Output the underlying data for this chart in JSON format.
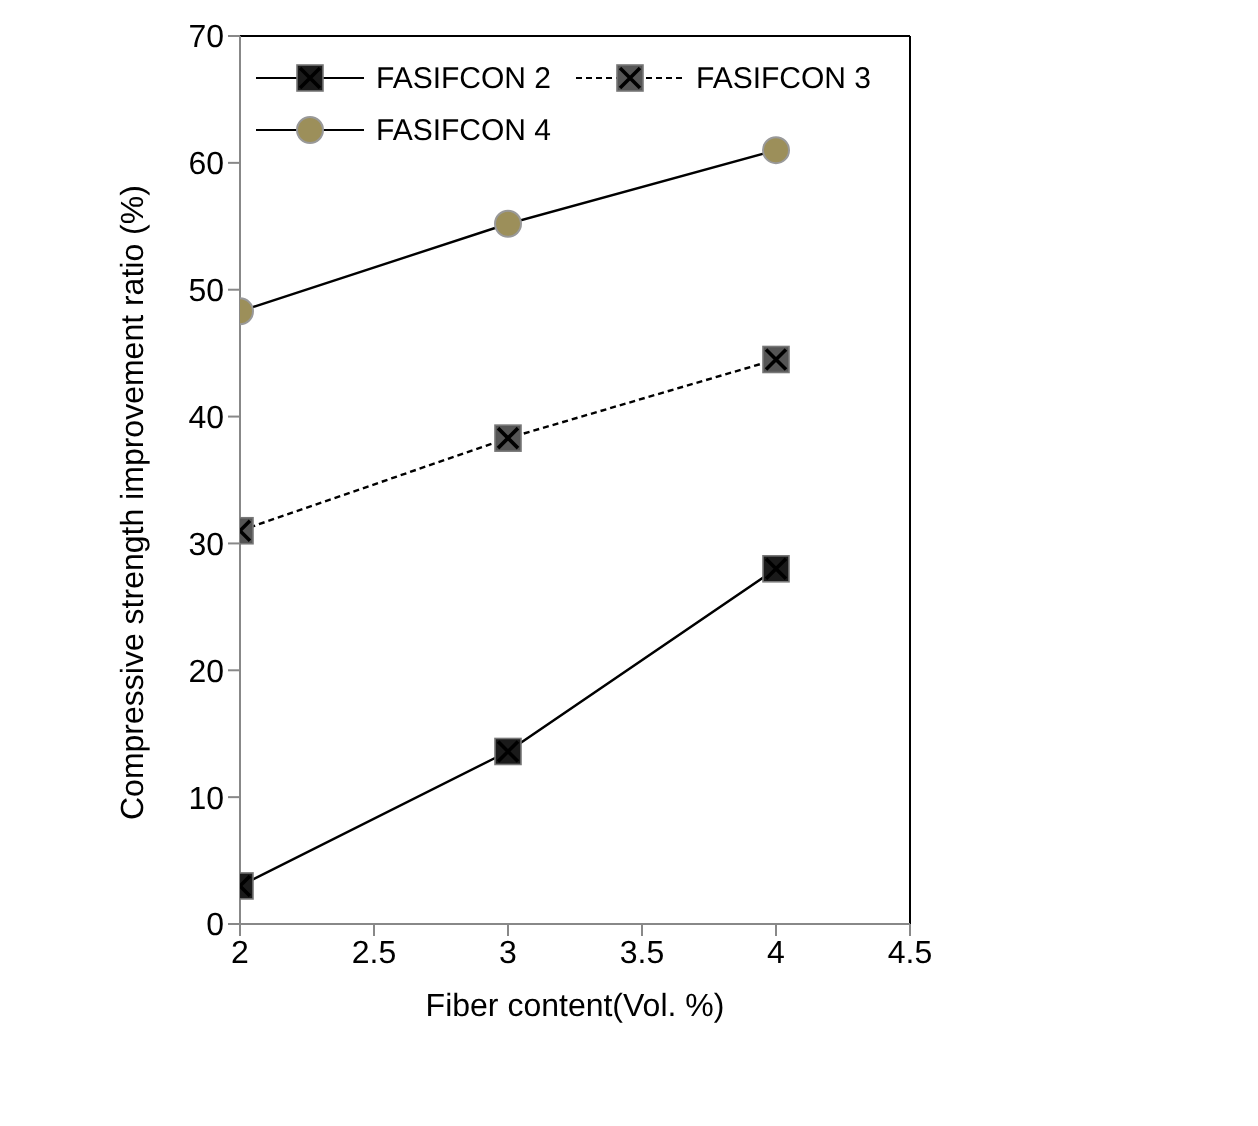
{
  "chart_data": {
    "type": "line",
    "xlabel": "Fiber content(Vol. %)",
    "ylabel": "Compressive strength improvement ratio (%)",
    "x": [
      2,
      3,
      4
    ],
    "series": [
      {
        "name": "FASIFCON 2",
        "color": "#1a1a1a",
        "values": [
          3,
          13.6,
          28
        ],
        "marker": "square",
        "line_style": "solid"
      },
      {
        "name": "FASIFCON 3",
        "color": "#555555",
        "values": [
          31,
          38.3,
          44.5
        ],
        "marker": "square",
        "line_style": "dashed"
      },
      {
        "name": "FASIFCON 4",
        "color": "#9c8f5a",
        "values": [
          48.3,
          55.2,
          61
        ],
        "marker": "circle",
        "line_style": "solid"
      }
    ],
    "xlim": [
      2,
      4.5
    ],
    "xticks": [
      2,
      2.5,
      3,
      3.5,
      4,
      4.5
    ],
    "ylim": [
      0,
      70
    ],
    "yticks": [
      0,
      10,
      20,
      30,
      40,
      50,
      60,
      70
    ],
    "grid": false,
    "legend": "top"
  }
}
